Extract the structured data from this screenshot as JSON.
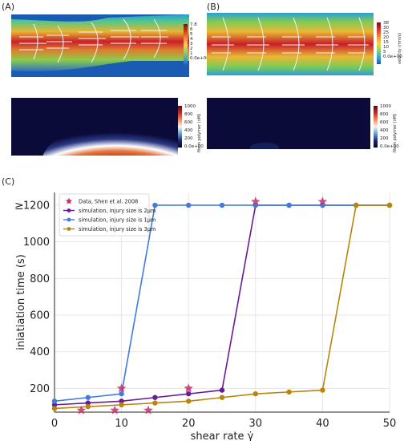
{
  "panels": {
    "a_label": "(A)",
    "b_label": "(B)",
    "c_label": "(C)"
  },
  "colorbars": {
    "a_velocity": {
      "ticks": [
        "7.8",
        "6",
        "5",
        "4",
        "3",
        "2",
        "1",
        "0.0e+00"
      ]
    },
    "b_velocity": {
      "title": "velocity (mm/s)",
      "ticks": [
        "38",
        "30",
        "25",
        "20",
        "15",
        "10",
        "5",
        "0.0e+00"
      ]
    },
    "a_fibrin": {
      "title": "fibrin polymer (nM)",
      "ticks": [
        "1000",
        "800",
        "600",
        "400",
        "200",
        "0.0e+00"
      ]
    },
    "b_fibrin": {
      "title": "fibrin polymer (nM)",
      "ticks": [
        "1000",
        "800",
        "600",
        "400",
        "200",
        "0.0e+00"
      ]
    }
  },
  "colors": {
    "data_star": "#c2306a",
    "sim_2um": "#6a1b9a",
    "sim_1um": "#3f7be0",
    "sim_3um": "#b8860b",
    "grid": "#e6e6e6"
  },
  "chart_data": {
    "type": "line",
    "xlabel": "shear rate γ̇",
    "ylabel": "iniatiation time (s)",
    "xlim": [
      0,
      50
    ],
    "ylim": [
      70,
      1270
    ],
    "xticks": [
      "0",
      "10",
      "20",
      "30",
      "40",
      "50"
    ],
    "yticks": [
      "200",
      "400",
      "600",
      "800",
      "1000",
      "1200"
    ],
    "ge_marker": "≥",
    "grid": true,
    "legend_position": "top-left",
    "scatter": {
      "name": "Data, Shen et al. 2008",
      "points": [
        [
          4,
          80
        ],
        [
          9,
          80
        ],
        [
          10,
          200
        ],
        [
          14,
          80
        ],
        [
          20,
          200
        ],
        [
          30,
          1220
        ],
        [
          40,
          1220
        ]
      ]
    },
    "series": [
      {
        "name": "simulation, injury size is 2μm",
        "x": [
          0,
          5,
          10,
          15,
          20,
          25,
          30,
          35,
          40,
          45,
          50
        ],
        "y": [
          110,
          120,
          130,
          150,
          170,
          190,
          1200,
          1200,
          1200,
          1200,
          1200
        ]
      },
      {
        "name": "simulation, injury size is 1μm",
        "x": [
          0,
          5,
          10,
          15,
          20,
          25,
          30,
          35,
          40,
          45,
          50
        ],
        "y": [
          130,
          150,
          170,
          1200,
          1200,
          1200,
          1200,
          1200,
          1200,
          1200,
          1200
        ]
      },
      {
        "name": "simulation, injury size is 3μm",
        "x": [
          0,
          5,
          10,
          15,
          20,
          25,
          30,
          35,
          40,
          45,
          50
        ],
        "y": [
          90,
          100,
          110,
          120,
          130,
          150,
          170,
          180,
          190,
          1200,
          1200
        ]
      }
    ]
  }
}
